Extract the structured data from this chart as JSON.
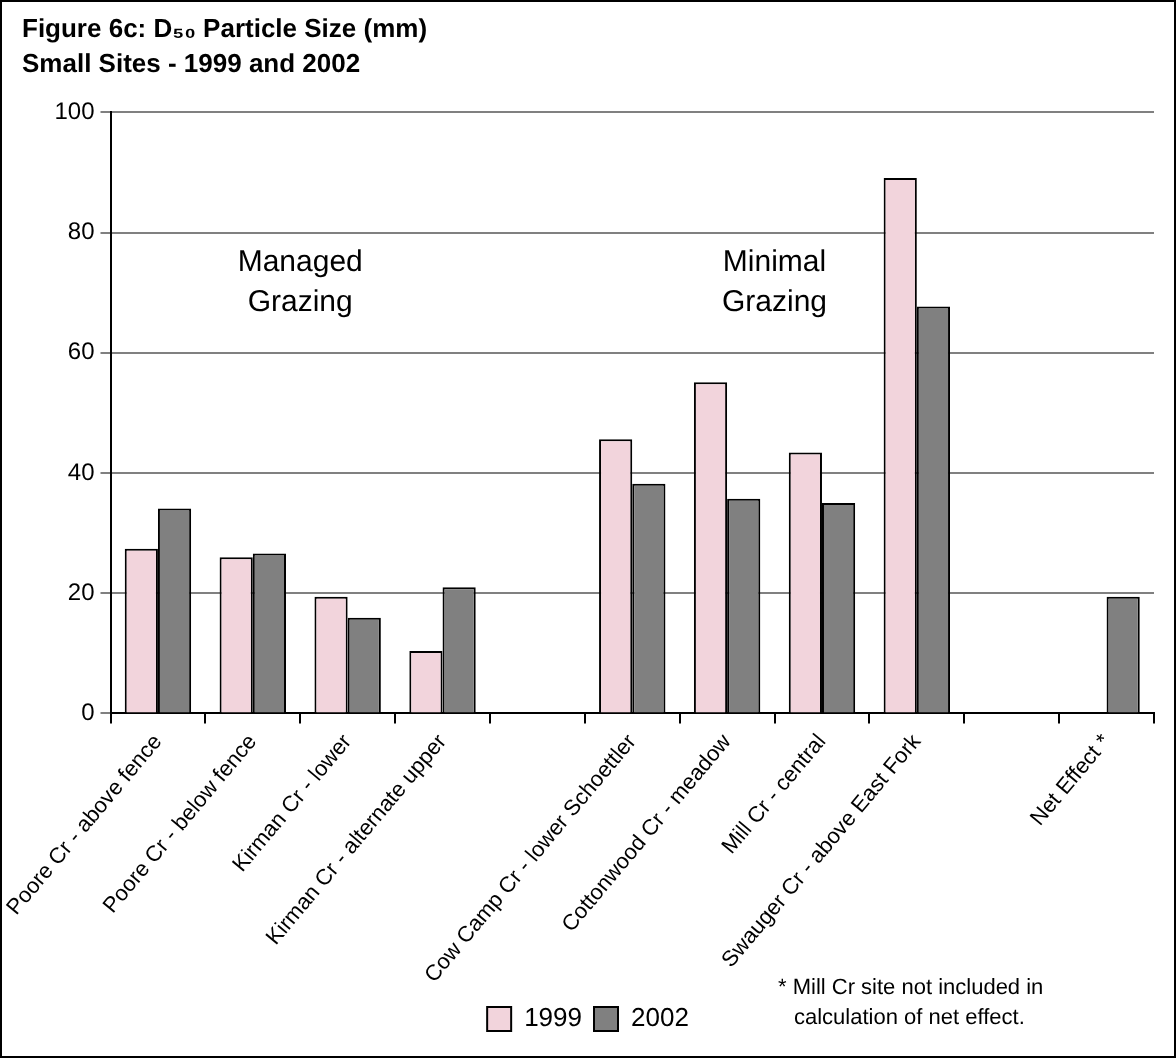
{
  "chart_data": {
    "type": "bar",
    "title": "Figure 6c: D₅₀ Particle Size (mm)",
    "subtitle": "Small Sites - 1999 and 2002",
    "categories": [
      "Poore Cr - above fence",
      "Poore Cr - below fence",
      "Kirman Cr - lower",
      "Kirman Cr - alternate upper",
      null,
      "Cow Camp Cr - lower Schoettler",
      "Cottonwood Cr - meadow",
      "Mill Cr - central",
      "Swauger Cr - above East Fork",
      null,
      "Net Effect *"
    ],
    "series": [
      {
        "name": "1999",
        "color": "#f2d4dc",
        "values": [
          27.4,
          26.0,
          19.4,
          10.4,
          null,
          45.6,
          55.1,
          43.4,
          89.1,
          null,
          null
        ]
      },
      {
        "name": "2002",
        "color": "#808080",
        "values": [
          34.1,
          26.6,
          15.9,
          21.0,
          null,
          38.2,
          35.7,
          35.0,
          67.7,
          null,
          19.4
        ]
      }
    ],
    "ylim": [
      0,
      100
    ],
    "yticks": [
      0,
      20,
      40,
      60,
      80,
      100
    ],
    "grid": "y",
    "legend": "bottom",
    "annotations": [
      "Managed Grazing",
      "Minimal Grazing",
      "* Mill Cr site not included in calculation of net effect."
    ]
  }
}
